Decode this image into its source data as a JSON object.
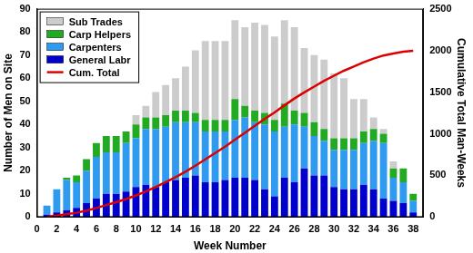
{
  "chart_data": {
    "type": "bar",
    "stacked": true,
    "grid": false,
    "legend": "upper left",
    "x_label": "Week Number",
    "y_label": "Number of Men on Site",
    "y2_label": "Cumulative Total Man-Weeks",
    "x": [
      1,
      2,
      3,
      4,
      5,
      6,
      7,
      8,
      9,
      10,
      11,
      12,
      13,
      14,
      15,
      16,
      17,
      18,
      19,
      20,
      21,
      22,
      23,
      24,
      25,
      26,
      27,
      28,
      29,
      30,
      31,
      32,
      33,
      34,
      35,
      36,
      37,
      38
    ],
    "xlim": [
      0,
      39
    ],
    "xticks": [
      0,
      2,
      4,
      6,
      8,
      10,
      12,
      14,
      16,
      18,
      20,
      22,
      24,
      26,
      28,
      30,
      32,
      34,
      36,
      38
    ],
    "ylim": [
      0,
      90
    ],
    "yticks": [
      0,
      10,
      20,
      30,
      40,
      50,
      60,
      70,
      80,
      90
    ],
    "y2lim": [
      0,
      2500
    ],
    "y2ticks": [
      0,
      500,
      1000,
      1500,
      2000,
      2500
    ],
    "series": [
      {
        "name": "General Labr",
        "type": "bar",
        "color": "#0000cc",
        "values": [
          1,
          2,
          3,
          4,
          6,
          8,
          10,
          10,
          11,
          13,
          14,
          13,
          15,
          16,
          17,
          18,
          15,
          15,
          16,
          17,
          17,
          16,
          12,
          9,
          17,
          15,
          21,
          18,
          18,
          13,
          12,
          12,
          14,
          12,
          8,
          7,
          6,
          2
        ]
      },
      {
        "name": "Carpenters",
        "type": "bar",
        "color": "#2f9bf0",
        "values": [
          4,
          10,
          13,
          11,
          14,
          18,
          18,
          18,
          21,
          21,
          24,
          25,
          24,
          25,
          24,
          23,
          22,
          22,
          21,
          25,
          26,
          25,
          28,
          28,
          22,
          25,
          18,
          17,
          15,
          16,
          17,
          17,
          18,
          21,
          24,
          10,
          9,
          5
        ]
      },
      {
        "name": "Carp Helpers",
        "type": "bar",
        "color": "#22aa22",
        "values": [
          0,
          0,
          1,
          3,
          5,
          6,
          7,
          7,
          5,
          6,
          5,
          5,
          5,
          5,
          5,
          4,
          5,
          5,
          5,
          9,
          5,
          5,
          5,
          5,
          10,
          6,
          6,
          6,
          5,
          5,
          5,
          5,
          5,
          5,
          4,
          4,
          6,
          3
        ]
      },
      {
        "name": "Sub Trades",
        "type": "bar",
        "color": "#cccccc",
        "values": [
          0,
          0,
          0,
          0,
          0,
          0,
          0,
          0,
          0,
          4,
          5,
          11,
          13,
          14,
          19,
          27,
          34,
          34,
          34,
          34,
          34,
          38,
          38,
          36,
          36,
          36,
          28,
          29,
          30,
          28,
          26,
          17,
          14,
          5,
          2,
          3,
          0,
          0
        ]
      },
      {
        "name": "Cum. Total",
        "type": "line",
        "axis": "y2",
        "color": "#dd0000",
        "line_style": "solid",
        "values": [
          5,
          17,
          34,
          52,
          77,
          109,
          144,
          179,
          216,
          260,
          308,
          362,
          419,
          479,
          544,
          616,
          692,
          768,
          844,
          929,
          1011,
          1095,
          1178,
          1256,
          1341,
          1423,
          1496,
          1566,
          1634,
          1696,
          1756,
          1807,
          1858,
          1901,
          1939,
          1963,
          1984,
          1994
        ]
      }
    ]
  }
}
